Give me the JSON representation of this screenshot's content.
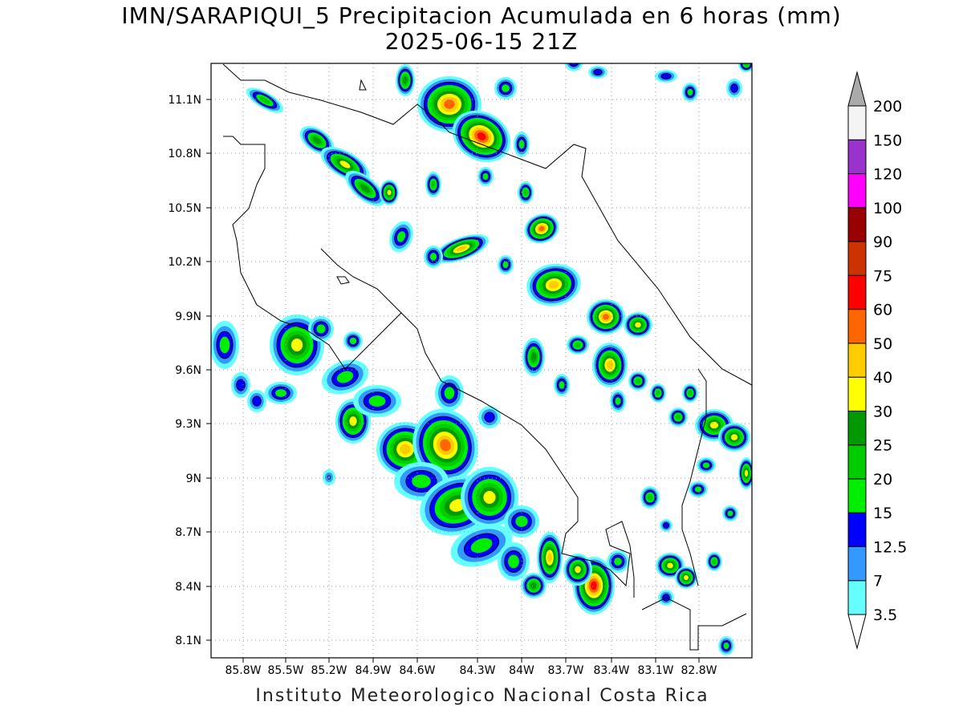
{
  "title": {
    "line1": "IMN/SARAPIQUI_5 Precipitacion Acumulada en 6 horas (mm)",
    "line2": "2025-06-15 21Z"
  },
  "footer": "Instituto Meteorologico Nacional Costa Rica",
  "axes": {
    "x_ticks": [
      "85.8W",
      "85.5W",
      "85.2W",
      "84.9W",
      "84.6W",
      "84.3W",
      "84W",
      "83.7W",
      "83.4W",
      "83.1W",
      "82.8W"
    ],
    "y_ticks": [
      "11.1N",
      "10.8N",
      "10.5N",
      "10.2N",
      "9.9N",
      "9.6N",
      "9.3N",
      "9N",
      "8.7N",
      "8.4N",
      "8.1N"
    ],
    "lon_range": [
      -85.97,
      -82.62
    ],
    "lat_range": [
      8.0,
      11.3
    ],
    "grid": "dotted"
  },
  "colorbar": {
    "levels": [
      "3.5",
      "7",
      "12.5",
      "15",
      "20",
      "25",
      "30",
      "40",
      "50",
      "60",
      "75",
      "90",
      "100",
      "120",
      "150",
      "200"
    ],
    "colors": [
      "#66ffff",
      "#3399ff",
      "#0000ff",
      "#00ee00",
      "#00cc00",
      "#009900",
      "#ffff00",
      "#ffcc00",
      "#ff6600",
      "#ff0000",
      "#cc3300",
      "#990000",
      "#ff00ff",
      "#9933cc",
      "#f4f4f4",
      "#aaaaaa"
    ]
  }
}
